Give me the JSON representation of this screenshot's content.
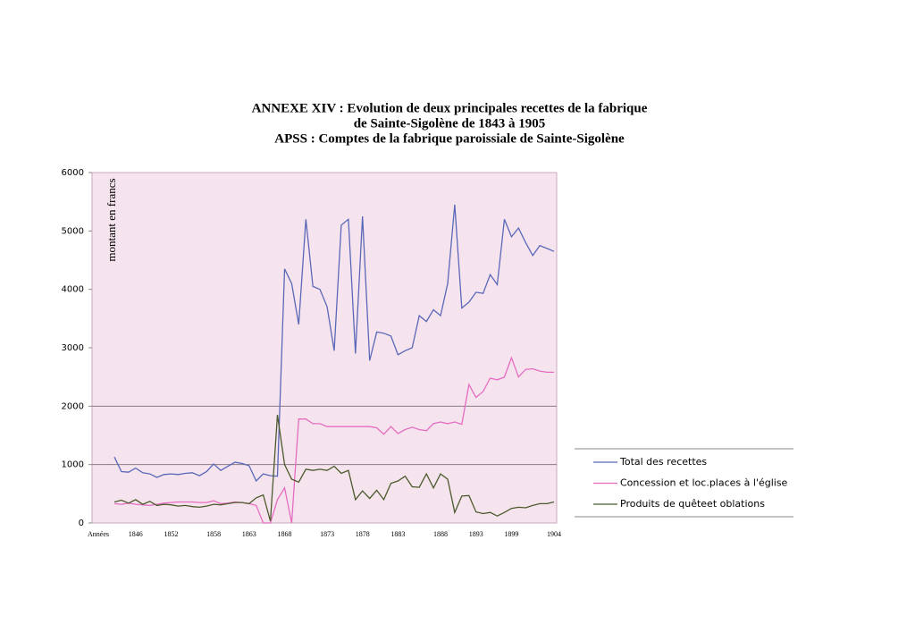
{
  "chart_data": {
    "type": "line",
    "title": [
      "ANNEXE XIV : Evolution de deux principales recettes de la fabrique",
      "de Sainte-Sigolène de 1843 à 1905",
      "APSS : Comptes de la fabrique paroissiale de Sainte-Sigolène"
    ],
    "ylabel": "montant en francs",
    "xlabel": "Années",
    "categories": [
      null,
      null,
      null,
      "1846",
      null,
      null,
      null,
      null,
      "1852",
      null,
      null,
      null,
      null,
      null,
      "1858",
      null,
      null,
      null,
      null,
      "1863",
      null,
      null,
      null,
      null,
      "1868",
      null,
      null,
      null,
      null,
      null,
      "1873",
      null,
      null,
      null,
      null,
      "1878",
      null,
      null,
      null,
      null,
      "1883",
      null,
      null,
      null,
      null,
      null,
      "1888",
      null,
      null,
      null,
      null,
      "1893",
      null,
      null,
      null,
      null,
      "1899",
      null,
      null,
      null,
      null,
      null,
      "1904"
    ],
    "series": [
      {
        "name": "Total des recettes",
        "color": "#5a68b8",
        "values": [
          1130,
          880,
          870,
          940,
          860,
          840,
          780,
          830,
          840,
          830,
          850,
          860,
          810,
          880,
          1010,
          900,
          970,
          1040,
          1020,
          980,
          720,
          840,
          810,
          800,
          4350,
          4100,
          3400,
          5200,
          4050,
          4000,
          3700,
          2950,
          5100,
          5200,
          2900,
          5250,
          2780,
          3270,
          3250,
          3200,
          2880,
          2950,
          3000,
          3550,
          3450,
          3650,
          3550,
          4100,
          5450,
          3680,
          3780,
          3950,
          3930,
          4250,
          4080,
          5200,
          4900,
          5050,
          4800,
          4580,
          4750,
          4700,
          4650
        ]
      },
      {
        "name": "Concession et loc.places à l'église",
        "color": "#e66cc2",
        "values": [
          330,
          320,
          340,
          320,
          310,
          300,
          320,
          340,
          350,
          360,
          360,
          360,
          350,
          350,
          380,
          330,
          340,
          360,
          350,
          330,
          300,
          0,
          0,
          400,
          600,
          0,
          1780,
          1780,
          1700,
          1700,
          1650,
          1650,
          1650,
          1650,
          1650,
          1650,
          1650,
          1630,
          1520,
          1650,
          1530,
          1600,
          1640,
          1600,
          1580,
          1700,
          1730,
          1700,
          1730,
          1690,
          2370,
          2150,
          2250,
          2480,
          2450,
          2500,
          2830,
          2500,
          2630,
          2640,
          2600,
          2580,
          2580
        ]
      },
      {
        "name": "Produits de quêteet oblations",
        "color": "#4b5a2c",
        "values": [
          360,
          390,
          340,
          400,
          320,
          370,
          300,
          320,
          310,
          290,
          300,
          280,
          270,
          290,
          320,
          310,
          330,
          350,
          350,
          330,
          430,
          480,
          30,
          1850,
          1000,
          750,
          700,
          920,
          900,
          920,
          900,
          970,
          850,
          900,
          400,
          550,
          420,
          560,
          400,
          680,
          720,
          800,
          620,
          610,
          840,
          600,
          840,
          750,
          180,
          460,
          470,
          190,
          160,
          180,
          120,
          180,
          250,
          270,
          260,
          300,
          330,
          330,
          360
        ]
      }
    ],
    "ylim": [
      0,
      6000
    ],
    "yticks": [
      0,
      1000,
      2000,
      3000,
      4000,
      5000,
      6000
    ],
    "hlines": [
      1000,
      2000
    ]
  }
}
